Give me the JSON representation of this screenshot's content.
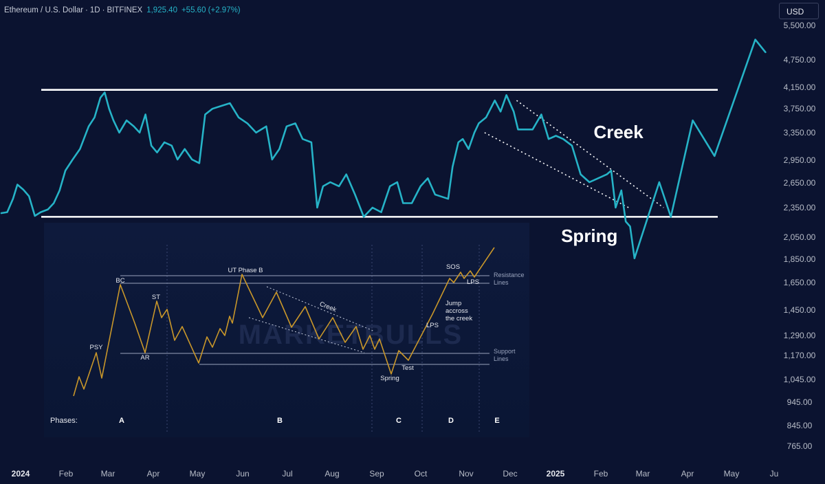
{
  "header": {
    "symbol": "Ethereum / U.S. Dollar",
    "interval": "1D",
    "exchange": "BITFINEX",
    "last_price": "1,925.40",
    "change": "+55.60 (+2.97%)"
  },
  "currency_button": "USD",
  "colors": {
    "background": "#0b1330",
    "price_line": "#26b3c7",
    "inset_line": "#c9972a",
    "level_line": "#ffffff"
  },
  "chart_data": [
    {
      "type": "line",
      "series": [
        {
          "values": [
            {
              "x": "2024-01-01",
              "y": 2290
            },
            {
              "x": "2024-01-05",
              "y": 2300
            },
            {
              "x": "2024-01-09",
              "y": 2450
            },
            {
              "x": "2024-01-12",
              "y": 2620
            },
            {
              "x": "2024-01-16",
              "y": 2560
            },
            {
              "x": "2024-01-20",
              "y": 2480
            },
            {
              "x": "2024-01-24",
              "y": 2260
            },
            {
              "x": "2024-01-28",
              "y": 2300
            },
            {
              "x": "2024-02-02",
              "y": 2330
            },
            {
              "x": "2024-02-06",
              "y": 2400
            },
            {
              "x": "2024-02-10",
              "y": 2550
            },
            {
              "x": "2024-02-14",
              "y": 2800
            },
            {
              "x": "2024-02-19",
              "y": 2950
            },
            {
              "x": "2024-02-24",
              "y": 3100
            },
            {
              "x": "2024-03-01",
              "y": 3450
            },
            {
              "x": "2024-03-05",
              "y": 3600
            },
            {
              "x": "2024-03-09",
              "y": 3950
            },
            {
              "x": "2024-03-12",
              "y": 4050
            },
            {
              "x": "2024-03-15",
              "y": 3750
            },
            {
              "x": "2024-03-18",
              "y": 3550
            },
            {
              "x": "2024-03-22",
              "y": 3350
            },
            {
              "x": "2024-03-27",
              "y": 3550
            },
            {
              "x": "2024-04-01",
              "y": 3450
            },
            {
              "x": "2024-04-05",
              "y": 3350
            },
            {
              "x": "2024-04-09",
              "y": 3650
            },
            {
              "x": "2024-04-13",
              "y": 3150
            },
            {
              "x": "2024-04-17",
              "y": 3050
            },
            {
              "x": "2024-04-22",
              "y": 3200
            },
            {
              "x": "2024-04-27",
              "y": 3150
            },
            {
              "x": "2024-05-01",
              "y": 2950
            },
            {
              "x": "2024-05-06",
              "y": 3100
            },
            {
              "x": "2024-05-11",
              "y": 2950
            },
            {
              "x": "2024-05-16",
              "y": 2900
            },
            {
              "x": "2024-05-20",
              "y": 3650
            },
            {
              "x": "2024-05-25",
              "y": 3750
            },
            {
              "x": "2024-05-31",
              "y": 3800
            },
            {
              "x": "2024-06-06",
              "y": 3850
            },
            {
              "x": "2024-06-12",
              "y": 3600
            },
            {
              "x": "2024-06-18",
              "y": 3500
            },
            {
              "x": "2024-06-24",
              "y": 3350
            },
            {
              "x": "2024-07-01",
              "y": 3450
            },
            {
              "x": "2024-07-05",
              "y": 2950
            },
            {
              "x": "2024-07-10",
              "y": 3100
            },
            {
              "x": "2024-07-15",
              "y": 3450
            },
            {
              "x": "2024-07-21",
              "y": 3500
            },
            {
              "x": "2024-07-26",
              "y": 3250
            },
            {
              "x": "2024-08-01",
              "y": 3200
            },
            {
              "x": "2024-08-05",
              "y": 2350
            },
            {
              "x": "2024-08-09",
              "y": 2600
            },
            {
              "x": "2024-08-14",
              "y": 2650
            },
            {
              "x": "2024-08-20",
              "y": 2600
            },
            {
              "x": "2024-08-25",
              "y": 2750
            },
            {
              "x": "2024-08-31",
              "y": 2500
            },
            {
              "x": "2024-09-06",
              "y": 2250
            },
            {
              "x": "2024-09-12",
              "y": 2350
            },
            {
              "x": "2024-09-18",
              "y": 2300
            },
            {
              "x": "2024-09-24",
              "y": 2600
            },
            {
              "x": "2024-09-29",
              "y": 2650
            },
            {
              "x": "2024-10-03",
              "y": 2400
            },
            {
              "x": "2024-10-09",
              "y": 2400
            },
            {
              "x": "2024-10-15",
              "y": 2600
            },
            {
              "x": "2024-10-20",
              "y": 2700
            },
            {
              "x": "2024-10-25",
              "y": 2500
            },
            {
              "x": "2024-11-03",
              "y": 2450
            },
            {
              "x": "2024-11-06",
              "y": 2850
            },
            {
              "x": "2024-11-10",
              "y": 3200
            },
            {
              "x": "2024-11-13",
              "y": 3250
            },
            {
              "x": "2024-11-17",
              "y": 3100
            },
            {
              "x": "2024-11-21",
              "y": 3350
            },
            {
              "x": "2024-11-24",
              "y": 3500
            },
            {
              "x": "2024-11-29",
              "y": 3600
            },
            {
              "x": "2024-12-05",
              "y": 3900
            },
            {
              "x": "2024-12-09",
              "y": 3700
            },
            {
              "x": "2024-12-13",
              "y": 4000
            },
            {
              "x": "2024-12-18",
              "y": 3700
            },
            {
              "x": "2024-12-21",
              "y": 3400
            },
            {
              "x": "2024-12-26",
              "y": 3400
            },
            {
              "x": "2024-12-31",
              "y": 3400
            },
            {
              "x": "2025-01-06",
              "y": 3650
            },
            {
              "x": "2025-01-11",
              "y": 3250
            },
            {
              "x": "2025-01-16",
              "y": 3300
            },
            {
              "x": "2025-01-21",
              "y": 3250
            },
            {
              "x": "2025-01-27",
              "y": 3150
            },
            {
              "x": "2025-02-02",
              "y": 2750
            },
            {
              "x": "2025-02-08",
              "y": 2650
            },
            {
              "x": "2025-02-14",
              "y": 2700
            },
            {
              "x": "2025-02-20",
              "y": 2750
            },
            {
              "x": "2025-02-23",
              "y": 2800
            },
            {
              "x": "2025-02-26",
              "y": 2350
            },
            {
              "x": "2025-03-02",
              "y": 2550
            },
            {
              "x": "2025-03-05",
              "y": 2200
            },
            {
              "x": "2025-03-08",
              "y": 2150
            },
            {
              "x": "2025-03-11",
              "y": 1850
            }
          ]
        },
        {
          "values": [
            {
              "x": "2025-03-11",
              "y": 1850
            },
            {
              "x": "2025-03-28",
              "y": 2650
            },
            {
              "x": "2025-04-05",
              "y": 2250
            },
            {
              "x": "2025-04-20",
              "y": 3550
            },
            {
              "x": "2025-05-05",
              "y": 3000
            },
            {
              "x": "2025-06-02",
              "y": 5200
            },
            {
              "x": "2025-06-09",
              "y": 4900
            }
          ]
        }
      ],
      "levels": [
        4100,
        2250
      ],
      "trend_lines": [
        {
          "from": {
            "x": "2024-12-20",
            "y": 3900
          },
          "to": {
            "x": "2025-03-31",
            "y": 2350
          }
        },
        {
          "from": {
            "x": "2024-11-28",
            "y": 3350
          },
          "to": {
            "x": "2025-03-07",
            "y": 2350
          }
        }
      ],
      "annotations": [
        {
          "text": "Creek",
          "x": "2025-02-28",
          "y": 3350
        },
        {
          "text": "Spring",
          "x": "2025-02-08",
          "y": 2050
        }
      ],
      "xaxis": {
        "ticks": [
          "2024",
          "Feb",
          "Mar",
          "Apr",
          "May",
          "Jun",
          "Jul",
          "Aug",
          "Sep",
          "Oct",
          "Nov",
          "Dec",
          "2025",
          "Feb",
          "Mar",
          "Apr",
          "May",
          "Ju"
        ]
      },
      "yaxis": {
        "scale": "log",
        "ticks": [
          "5,500.00",
          "4,750.00",
          "4,150.00",
          "3,750.00",
          "3,350.00",
          "2,950.00",
          "2,650.00",
          "2,350.00",
          "2,050.00",
          "1,850.00",
          "1,650.00",
          "1,450.00",
          "1,290.00",
          "1,170.00",
          "1,045.00",
          "945.00",
          "845.00",
          "765.00"
        ]
      },
      "grid": false
    },
    {
      "type": "line",
      "watermark": "MARKETBULLS",
      "lines": [
        {
          "label": "Resistance Lines",
          "values": [
            1,
            2
          ]
        },
        {
          "label": "Support Lines",
          "values": [
            1,
            2
          ]
        }
      ],
      "path_labels": [
        "PSY",
        "BC",
        "AR",
        "ST",
        "UT Phase B",
        "Creek",
        "Spring",
        "Test",
        "LPS",
        "SOS",
        "LPS",
        "Jump accross the creek"
      ],
      "phases_label": "Phases:",
      "phases": [
        "A",
        "B",
        "C",
        "D",
        "E"
      ]
    }
  ]
}
